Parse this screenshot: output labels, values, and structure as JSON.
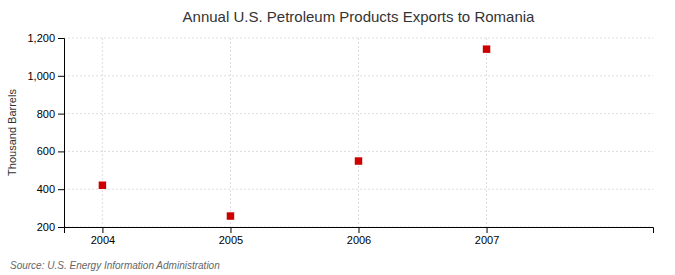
{
  "chart_data": {
    "type": "scatter",
    "title": "Annual U.S. Petroleum Products Exports to Romania",
    "ylabel": "Thousand Barrels",
    "x": [
      2004,
      2005,
      2006,
      2007
    ],
    "values": [
      421,
      258,
      549,
      1141
    ],
    "color": "#cc0000",
    "marker": "square",
    "xlim": [
      2003.7,
      2008.3
    ],
    "xticks": [
      2004,
      2005,
      2006,
      2007
    ],
    "ylim": [
      200,
      1200
    ],
    "yticks": [
      200,
      400,
      600,
      800,
      {
        "value": 1000,
        "label": "1,000"
      },
      {
        "value": 1200,
        "label": "1,200"
      }
    ],
    "grid": true,
    "annotations": [
      "Source: U.S. Energy Information Administration"
    ]
  }
}
